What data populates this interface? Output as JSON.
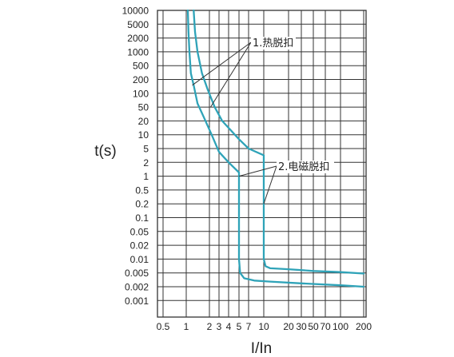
{
  "chart_data": {
    "type": "line",
    "title": "",
    "xlabel": "I/In",
    "ylabel": "t(s)",
    "x_scale": "log",
    "y_scale": "log",
    "xlim": [
      0.5,
      200
    ],
    "ylim": [
      0.0005,
      10000
    ],
    "grid": true,
    "x_ticks": [
      0.5,
      1,
      2,
      3,
      4,
      5,
      7,
      10,
      20,
      30,
      50,
      70,
      100,
      200
    ],
    "x_tick_labels": [
      "0.5",
      "1",
      "2",
      "3",
      "4",
      "5",
      "7",
      "10",
      "20",
      "30",
      "50",
      "70",
      "100",
      "200"
    ],
    "y_ticks": [
      10000,
      5000,
      2000,
      1000,
      500,
      200,
      100,
      50,
      20,
      10,
      5,
      2,
      1,
      0.5,
      0.2,
      0.1,
      0.05,
      0.02,
      0.01,
      0.005,
      0.002,
      0.001
    ],
    "y_tick_labels": [
      "10000",
      "5000",
      "2000",
      "1000",
      "500",
      "200",
      "100",
      "50",
      "20",
      "10",
      "5",
      "2",
      "1",
      "0.5",
      "0.2",
      "0.1",
      "0.05",
      "0.02",
      "0.01",
      "0.005",
      "0.002",
      "0.001"
    ],
    "series": [
      {
        "color": "#2fa3b8",
        "points": [
          [
            1.05,
            10000
          ],
          [
            1.07,
            3000
          ],
          [
            1.1,
            1000
          ],
          [
            1.15,
            300
          ],
          [
            1.25,
            150
          ],
          [
            1.4,
            60
          ],
          [
            1.7,
            25
          ],
          [
            2.2,
            10
          ],
          [
            3,
            4
          ],
          [
            4,
            2
          ],
          [
            5,
            1.2
          ],
          [
            5,
            0.01
          ],
          [
            5.2,
            0.005
          ],
          [
            6,
            0.0035
          ],
          [
            8,
            0.003
          ],
          [
            12,
            0.0028
          ],
          [
            30,
            0.0025
          ],
          [
            100,
            0.0022
          ],
          [
            200,
            0.002
          ]
        ]
      },
      {
        "color": "#2fa3b8",
        "points": [
          [
            1.25,
            10000
          ],
          [
            1.3,
            3000
          ],
          [
            1.4,
            1000
          ],
          [
            1.6,
            300
          ],
          [
            1.9,
            120
          ],
          [
            2.5,
            50
          ],
          [
            3.3,
            20
          ],
          [
            5,
            8
          ],
          [
            7,
            5
          ],
          [
            10,
            3.2
          ],
          [
            10,
            0.01
          ],
          [
            10.5,
            0.007
          ],
          [
            12,
            0.0063
          ],
          [
            20,
            0.006
          ],
          [
            50,
            0.0055
          ],
          [
            100,
            0.0052
          ],
          [
            200,
            0.0048
          ]
        ]
      }
    ],
    "annotations": [
      {
        "text": "1.热脱扣",
        "targets": [
          [
            1.2,
            150
          ],
          [
            2.1,
            50
          ]
        ]
      },
      {
        "text": "2.电磁脱扣",
        "targets": [
          [
            5,
            1
          ],
          [
            10,
            0.2
          ]
        ]
      }
    ]
  }
}
